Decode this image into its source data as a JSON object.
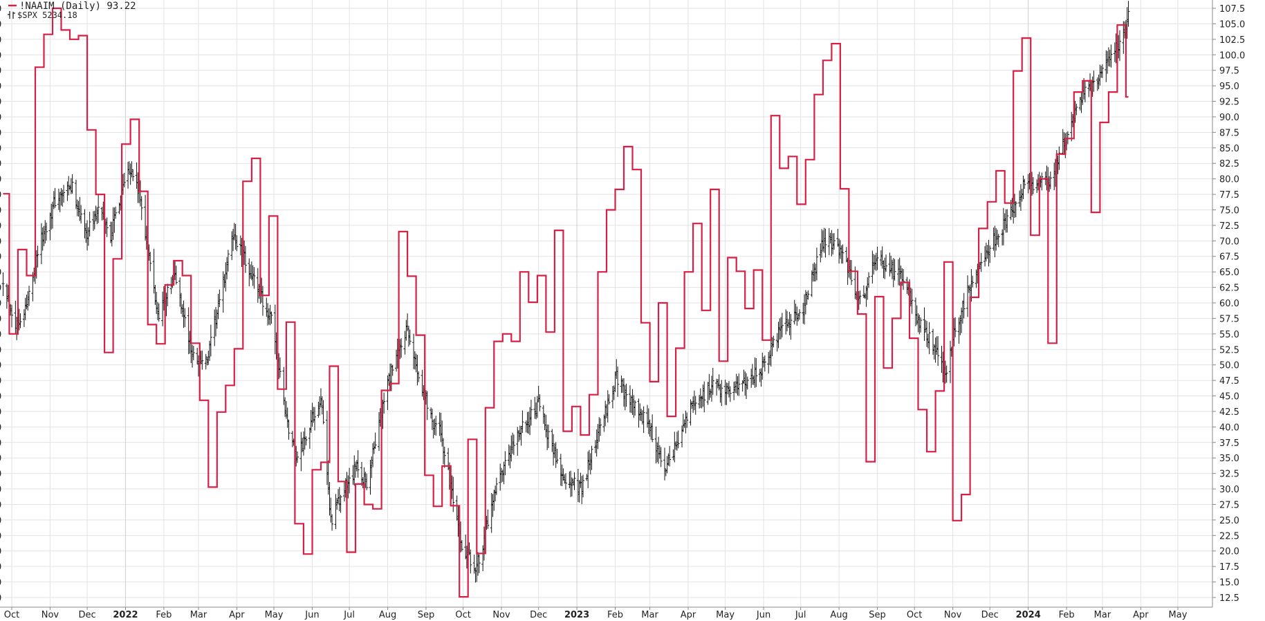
{
  "chart_data": {
    "type": "line",
    "title": "",
    "legend": [
      {
        "name": "!NAAIM (Daily) 93.22",
        "color": "#d81f45"
      },
      {
        "name": "$SPX 5234.18",
        "color": "#111111"
      }
    ],
    "legend_placement": "top-left",
    "grid": true,
    "ylim": [
      12.5,
      107.5
    ],
    "y_ticks": [
      "12.5",
      "15.0",
      "17.5",
      "20.0",
      "22.5",
      "25.0",
      "27.5",
      "30.0",
      "32.5",
      "35.0",
      "37.5",
      "40.0",
      "42.5",
      "45.0",
      "47.5",
      "50.0",
      "52.5",
      "55.0",
      "57.5",
      "60.0",
      "62.5",
      "65.0",
      "67.5",
      "70.0",
      "72.5",
      "75.0",
      "77.5",
      "80.0",
      "82.5",
      "85.0",
      "87.5",
      "90.0",
      "92.5",
      "95.0",
      "97.5",
      "100.0",
      "102.5",
      "105.0",
      "107.5"
    ],
    "x_ticks": [
      {
        "label": "Oct",
        "x": "2021-10-01",
        "bold": false
      },
      {
        "label": "Nov",
        "x": "2021-11-01",
        "bold": false
      },
      {
        "label": "Dec",
        "x": "2021-12-01",
        "bold": false
      },
      {
        "label": "2022",
        "x": "2022-01-01",
        "bold": true
      },
      {
        "label": "Feb",
        "x": "2022-02-01",
        "bold": false
      },
      {
        "label": "Mar",
        "x": "2022-03-01",
        "bold": false
      },
      {
        "label": "Apr",
        "x": "2022-04-01",
        "bold": false
      },
      {
        "label": "May",
        "x": "2022-05-01",
        "bold": false
      },
      {
        "label": "Jun",
        "x": "2022-06-01",
        "bold": false
      },
      {
        "label": "Jul",
        "x": "2022-07-01",
        "bold": false
      },
      {
        "label": "Aug",
        "x": "2022-08-01",
        "bold": false
      },
      {
        "label": "Sep",
        "x": "2022-09-01",
        "bold": false
      },
      {
        "label": "Oct",
        "x": "2022-10-01",
        "bold": false
      },
      {
        "label": "Nov",
        "x": "2022-11-01",
        "bold": false
      },
      {
        "label": "Dec",
        "x": "2022-12-01",
        "bold": false
      },
      {
        "label": "2023",
        "x": "2023-01-01",
        "bold": true
      },
      {
        "label": "Feb",
        "x": "2023-02-01",
        "bold": false
      },
      {
        "label": "Mar",
        "x": "2023-03-01",
        "bold": false
      },
      {
        "label": "Apr",
        "x": "2023-04-01",
        "bold": false
      },
      {
        "label": "May",
        "x": "2023-05-01",
        "bold": false
      },
      {
        "label": "Jun",
        "x": "2023-06-01",
        "bold": false
      },
      {
        "label": "Jul",
        "x": "2023-07-01",
        "bold": false
      },
      {
        "label": "Aug",
        "x": "2023-08-01",
        "bold": false
      },
      {
        "label": "Sep",
        "x": "2023-09-01",
        "bold": false
      },
      {
        "label": "Oct",
        "x": "2023-10-01",
        "bold": false
      },
      {
        "label": "Nov",
        "x": "2023-11-01",
        "bold": false
      },
      {
        "label": "Dec",
        "x": "2023-12-01",
        "bold": false
      },
      {
        "label": "2024",
        "x": "2024-01-01",
        "bold": true
      },
      {
        "label": "Feb",
        "x": "2024-02-01",
        "bold": false
      },
      {
        "label": "Mar",
        "x": "2024-03-01",
        "bold": false
      },
      {
        "label": "Apr",
        "x": "2024-04-01",
        "bold": false
      },
      {
        "label": "May",
        "x": "2024-05-01",
        "bold": false
      }
    ],
    "x_range": [
      "2021-09-25",
      "2024-05-15"
    ],
    "series": [
      {
        "name": "!NAAIM (Daily)",
        "color": "#d81f45",
        "step": true,
        "points": [
          [
            "2021-09-24",
            77.6
          ],
          [
            "2021-09-29",
            55.0
          ],
          [
            "2021-10-06",
            68.6
          ],
          [
            "2021-10-13",
            64.4
          ],
          [
            "2021-10-20",
            98.0
          ],
          [
            "2021-10-27",
            103.3
          ],
          [
            "2021-11-03",
            107.5
          ],
          [
            "2021-11-10",
            104.0
          ],
          [
            "2021-11-17",
            102.5
          ],
          [
            "2021-11-24",
            103.1
          ],
          [
            "2021-12-01",
            87.9
          ],
          [
            "2021-12-08",
            77.5
          ],
          [
            "2021-12-15",
            52.0
          ],
          [
            "2021-12-22",
            67.1
          ],
          [
            "2021-12-29",
            85.6
          ],
          [
            "2022-01-05",
            89.6
          ],
          [
            "2022-01-12",
            78.0
          ],
          [
            "2022-01-19",
            56.5
          ],
          [
            "2022-01-26",
            53.4
          ],
          [
            "2022-02-02",
            62.9
          ],
          [
            "2022-02-09",
            66.8
          ],
          [
            "2022-02-16",
            64.4
          ],
          [
            "2022-02-23",
            53.5
          ],
          [
            "2022-03-02",
            44.3
          ],
          [
            "2022-03-09",
            30.3
          ],
          [
            "2022-03-16",
            42.4
          ],
          [
            "2022-03-23",
            46.7
          ],
          [
            "2022-03-30",
            52.6
          ],
          [
            "2022-04-06",
            79.6
          ],
          [
            "2022-04-13",
            83.3
          ],
          [
            "2022-04-20",
            61.2
          ],
          [
            "2022-04-27",
            74.0
          ],
          [
            "2022-05-04",
            46.1
          ],
          [
            "2022-05-11",
            56.9
          ],
          [
            "2022-05-18",
            24.4
          ],
          [
            "2022-05-25",
            19.5
          ],
          [
            "2022-06-01",
            33.1
          ],
          [
            "2022-06-08",
            34.3
          ],
          [
            "2022-06-15",
            49.8
          ],
          [
            "2022-06-22",
            31.2
          ],
          [
            "2022-06-29",
            19.8
          ],
          [
            "2022-07-06",
            30.8
          ],
          [
            "2022-07-13",
            27.5
          ],
          [
            "2022-07-20",
            26.8
          ],
          [
            "2022-07-27",
            45.9
          ],
          [
            "2022-08-03",
            47.0
          ],
          [
            "2022-08-10",
            71.5
          ],
          [
            "2022-08-17",
            64.3
          ],
          [
            "2022-08-24",
            54.8
          ],
          [
            "2022-08-31",
            32.2
          ],
          [
            "2022-09-07",
            27.2
          ],
          [
            "2022-09-14",
            33.7
          ],
          [
            "2022-09-21",
            27.3
          ],
          [
            "2022-09-28",
            12.6
          ],
          [
            "2022-10-05",
            38.0
          ],
          [
            "2022-10-12",
            19.6
          ],
          [
            "2022-10-19",
            43.1
          ],
          [
            "2022-10-26",
            53.8
          ],
          [
            "2022-11-02",
            55.0
          ],
          [
            "2022-11-09",
            53.8
          ],
          [
            "2022-11-16",
            65.0
          ],
          [
            "2022-11-23",
            60.1
          ],
          [
            "2022-11-30",
            64.4
          ],
          [
            "2022-12-07",
            55.3
          ],
          [
            "2022-12-14",
            71.7
          ],
          [
            "2022-12-21",
            39.3
          ],
          [
            "2022-12-28",
            43.3
          ],
          [
            "2023-01-04",
            38.7
          ],
          [
            "2023-01-11",
            45.2
          ],
          [
            "2023-01-18",
            65.0
          ],
          [
            "2023-01-25",
            75.0
          ],
          [
            "2023-02-01",
            78.3
          ],
          [
            "2023-02-08",
            85.2
          ],
          [
            "2023-02-15",
            81.5
          ],
          [
            "2023-02-22",
            56.8
          ],
          [
            "2023-03-01",
            47.3
          ],
          [
            "2023-03-08",
            60.0
          ],
          [
            "2023-03-15",
            41.7
          ],
          [
            "2023-03-22",
            52.7
          ],
          [
            "2023-03-29",
            65.0
          ],
          [
            "2023-04-05",
            72.8
          ],
          [
            "2023-04-12",
            58.8
          ],
          [
            "2023-04-19",
            78.3
          ],
          [
            "2023-04-26",
            50.6
          ],
          [
            "2023-05-03",
            67.3
          ],
          [
            "2023-05-10",
            65.1
          ],
          [
            "2023-05-17",
            59.1
          ],
          [
            "2023-05-24",
            65.3
          ],
          [
            "2023-05-31",
            54.0
          ],
          [
            "2023-06-07",
            90.2
          ],
          [
            "2023-06-14",
            81.7
          ],
          [
            "2023-06-21",
            83.6
          ],
          [
            "2023-06-28",
            75.9
          ],
          [
            "2023-07-05",
            83.1
          ],
          [
            "2023-07-12",
            93.6
          ],
          [
            "2023-07-19",
            99.1
          ],
          [
            "2023-07-26",
            101.8
          ],
          [
            "2023-08-02",
            78.4
          ],
          [
            "2023-08-09",
            65.1
          ],
          [
            "2023-08-16",
            58.2
          ],
          [
            "2023-08-23",
            34.4
          ],
          [
            "2023-08-30",
            61.0
          ],
          [
            "2023-09-06",
            49.5
          ],
          [
            "2023-09-13",
            57.5
          ],
          [
            "2023-09-20",
            63.3
          ],
          [
            "2023-09-27",
            54.3
          ],
          [
            "2023-10-04",
            42.8
          ],
          [
            "2023-10-11",
            36.0
          ],
          [
            "2023-10-18",
            45.8
          ],
          [
            "2023-10-25",
            66.6
          ],
          [
            "2023-11-01",
            24.9
          ],
          [
            "2023-11-08",
            29.1
          ],
          [
            "2023-11-15",
            60.9
          ],
          [
            "2023-11-22",
            72.0
          ],
          [
            "2023-11-29",
            76.3
          ],
          [
            "2023-12-06",
            81.3
          ],
          [
            "2023-12-13",
            76.1
          ],
          [
            "2023-12-20",
            97.4
          ],
          [
            "2023-12-27",
            102.7
          ],
          [
            "2024-01-03",
            70.9
          ],
          [
            "2024-01-10",
            80.0
          ],
          [
            "2024-01-17",
            53.5
          ],
          [
            "2024-01-24",
            84.0
          ],
          [
            "2024-01-31",
            86.5
          ],
          [
            "2024-02-07",
            94.0
          ],
          [
            "2024-02-14",
            95.8
          ],
          [
            "2024-02-21",
            74.6
          ],
          [
            "2024-02-28",
            89.1
          ],
          [
            "2024-03-06",
            94.0
          ],
          [
            "2024-03-13",
            104.8
          ],
          [
            "2024-03-20",
            93.2
          ],
          [
            "2024-03-22",
            93.2
          ]
        ]
      },
      {
        "name": "$SPX",
        "color": "#111111",
        "type": "ohlc",
        "anchors": [
          [
            "2021-09-24",
            64.0
          ],
          [
            "2021-10-04",
            56.5
          ],
          [
            "2021-10-13",
            59.5
          ],
          [
            "2021-10-22",
            68.5
          ],
          [
            "2021-11-05",
            76.5
          ],
          [
            "2021-11-19",
            78.5
          ],
          [
            "2021-11-30",
            71.0
          ],
          [
            "2021-12-10",
            75.0
          ],
          [
            "2021-12-20",
            71.0
          ],
          [
            "2022-01-03",
            82.5
          ],
          [
            "2022-01-12",
            78.0
          ],
          [
            "2022-01-27",
            58.0
          ],
          [
            "2022-02-10",
            64.5
          ],
          [
            "2022-02-24",
            51.5
          ],
          [
            "2022-03-08",
            50.5
          ],
          [
            "2022-03-29",
            71.0
          ],
          [
            "2022-04-13",
            64.5
          ],
          [
            "2022-04-29",
            57.0
          ],
          [
            "2022-05-12",
            40.5
          ],
          [
            "2022-05-20",
            35.0
          ],
          [
            "2022-06-08",
            45.0
          ],
          [
            "2022-06-16",
            25.0
          ],
          [
            "2022-07-06",
            33.5
          ],
          [
            "2022-07-15",
            31.0
          ],
          [
            "2022-08-01",
            47.0
          ],
          [
            "2022-08-16",
            55.5
          ],
          [
            "2022-09-06",
            41.0
          ],
          [
            "2022-09-13",
            39.0
          ],
          [
            "2022-09-30",
            20.0
          ],
          [
            "2022-10-12",
            17.5
          ],
          [
            "2022-10-28",
            30.0
          ],
          [
            "2022-11-15",
            39.0
          ],
          [
            "2022-12-01",
            43.5
          ],
          [
            "2022-12-22",
            31.0
          ],
          [
            "2023-01-05",
            30.5
          ],
          [
            "2023-01-20",
            40.0
          ],
          [
            "2023-02-02",
            48.0
          ],
          [
            "2023-02-17",
            43.0
          ],
          [
            "2023-03-01",
            40.0
          ],
          [
            "2023-03-13",
            32.5
          ],
          [
            "2023-04-03",
            43.0
          ],
          [
            "2023-04-20",
            46.5
          ],
          [
            "2023-05-04",
            46.0
          ],
          [
            "2023-05-19",
            47.0
          ],
          [
            "2023-06-01",
            50.0
          ],
          [
            "2023-06-15",
            55.5
          ],
          [
            "2023-07-03",
            59.0
          ],
          [
            "2023-07-19",
            70.0
          ],
          [
            "2023-08-02",
            69.0
          ],
          [
            "2023-08-18",
            60.0
          ],
          [
            "2023-09-01",
            67.5
          ],
          [
            "2023-09-21",
            64.0
          ],
          [
            "2023-10-04",
            57.5
          ],
          [
            "2023-10-11",
            55.0
          ],
          [
            "2023-10-27",
            48.5
          ],
          [
            "2023-11-01",
            54.0
          ],
          [
            "2023-11-14",
            62.5
          ],
          [
            "2023-12-01",
            69.0
          ],
          [
            "2023-12-14",
            73.0
          ],
          [
            "2023-12-29",
            79.0
          ],
          [
            "2024-01-05",
            79.0
          ],
          [
            "2024-01-19",
            80.0
          ],
          [
            "2024-02-01",
            87.0
          ],
          [
            "2024-02-12",
            93.0
          ],
          [
            "2024-02-22",
            95.0
          ],
          [
            "2024-03-01",
            98.0
          ],
          [
            "2024-03-08",
            100.5
          ],
          [
            "2024-03-15",
            101.5
          ],
          [
            "2024-03-22",
            106.5
          ]
        ]
      }
    ]
  }
}
